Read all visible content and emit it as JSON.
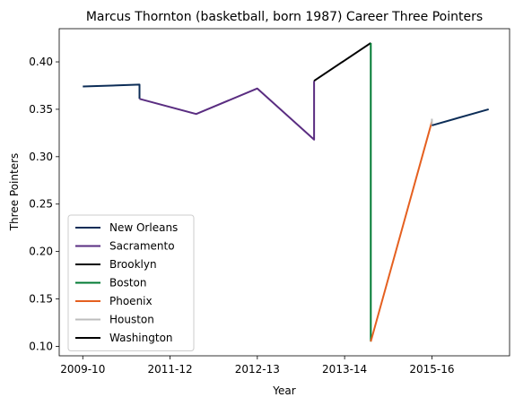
{
  "chart_data": {
    "type": "line",
    "title": "Marcus Thornton (basketball, born 1987) Career Three Pointers",
    "xlabel": "Year",
    "ylabel": "Three Pointers",
    "x_ticks": [
      "2009-10",
      "2011-12",
      "2012-13",
      "2013-14",
      "2015-16"
    ],
    "x_tick_values": [
      0,
      1.0,
      2.0,
      3.0,
      4.0
    ],
    "ylim": [
      0.09,
      0.435
    ],
    "y_ticks": [
      0.1,
      0.15,
      0.2,
      0.25,
      0.3,
      0.35,
      0.4
    ],
    "y_tick_labels": [
      "0.10",
      "0.15",
      "0.20",
      "0.25",
      "0.30",
      "0.35",
      "0.40"
    ],
    "xlim": [
      -0.27,
      4.89
    ],
    "grid": false,
    "legend_position": "lower-left",
    "series": [
      {
        "name": "New Orleans",
        "color": "#0c2d57",
        "points": [
          [
            0,
            0.374
          ],
          [
            0.65,
            0.376
          ],
          [
            0.65,
            0.361
          ]
        ]
      },
      {
        "name": "Sacramento",
        "color": "#5a2d81",
        "points": [
          [
            0.65,
            0.361
          ],
          [
            1.3,
            0.345
          ],
          [
            2.0,
            0.372
          ],
          [
            2.65,
            0.318
          ],
          [
            2.65,
            0.38
          ]
        ]
      },
      {
        "name": "Brooklyn",
        "color": "#000000",
        "points": [
          [
            2.65,
            0.38
          ],
          [
            3.3,
            0.42
          ]
        ]
      },
      {
        "name": "Boston",
        "color": "#007a33",
        "points": [
          [
            3.3,
            0.42
          ],
          [
            3.3,
            0.105
          ]
        ]
      },
      {
        "name": "Phoenix",
        "color": "#e56020",
        "points": [
          [
            3.3,
            0.105
          ],
          [
            4.0,
            0.337
          ]
        ]
      },
      {
        "name": "Houston",
        "color": "#bdbdbd",
        "points": [
          [
            4.0,
            0.34
          ],
          [
            4.0,
            0.333
          ]
        ]
      },
      {
        "name": "Washington",
        "color": "#000000",
        "points": []
      },
      {
        "name": "",
        "color": "#0c2d57",
        "points": [
          [
            4.0,
            0.333
          ],
          [
            4.65,
            0.35
          ]
        ]
      }
    ]
  }
}
